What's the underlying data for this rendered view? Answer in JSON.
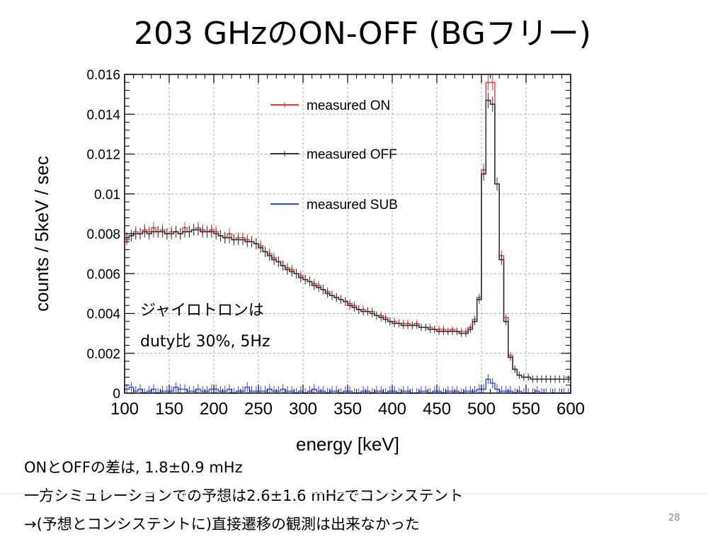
{
  "slide": {
    "title": "203 GHzのON-OFF (BGフリー)",
    "annotation_line1": "ジャイロトロンは",
    "annotation_line2": "duty比 30%, 5Hz",
    "footer": [
      "ONとOFFの差は, 1.8±0.9 mHz",
      "一方シミュレーションでの予想は2.6±1.6 mHzでコンシステント",
      "→(予想とコンシステントに)直接遷移の観測は出来なかった"
    ],
    "page_number": "28"
  },
  "chart_data": {
    "type": "line",
    "xlabel": "energy [keV]",
    "ylabel": "counts / 5keV / sec",
    "xlim": [
      100,
      600
    ],
    "ylim": [
      0,
      0.016
    ],
    "x_ticks": [
      "100",
      "150",
      "200",
      "250",
      "300",
      "350",
      "400",
      "450",
      "500",
      "550",
      "600"
    ],
    "y_ticks": [
      "0",
      "0.002",
      "0.004",
      "0.006",
      "0.008",
      "0.01",
      "0.012",
      "0.014",
      "0.016"
    ],
    "grid": true,
    "legend_placement": "top-right",
    "bin_width_keV": 5,
    "x": [
      100,
      105,
      110,
      115,
      120,
      125,
      130,
      135,
      140,
      145,
      150,
      155,
      160,
      165,
      170,
      175,
      180,
      185,
      190,
      195,
      200,
      205,
      210,
      215,
      220,
      225,
      230,
      235,
      240,
      245,
      250,
      255,
      260,
      265,
      270,
      275,
      280,
      285,
      290,
      295,
      300,
      305,
      310,
      315,
      320,
      325,
      330,
      335,
      340,
      345,
      350,
      355,
      360,
      365,
      370,
      375,
      380,
      385,
      390,
      395,
      400,
      405,
      410,
      415,
      420,
      425,
      430,
      435,
      440,
      445,
      450,
      455,
      460,
      465,
      470,
      475,
      480,
      485,
      490,
      495,
      500,
      505,
      510,
      515,
      520,
      525,
      530,
      535,
      540,
      545,
      550,
      555,
      560,
      565,
      570,
      575,
      580,
      585,
      590,
      595
    ],
    "series": [
      {
        "name": "measured ON",
        "color": "#ff3333",
        "values": [
          0.0077,
          0.0079,
          0.0081,
          0.008,
          0.0082,
          0.0081,
          0.0083,
          0.0081,
          0.0082,
          0.008,
          0.0081,
          0.0081,
          0.008,
          0.0083,
          0.0081,
          0.0082,
          0.0083,
          0.0082,
          0.0081,
          0.0082,
          0.0081,
          0.0079,
          0.0078,
          0.008,
          0.0077,
          0.0078,
          0.0078,
          0.0077,
          0.0076,
          0.0075,
          0.0074,
          0.0071,
          0.007,
          0.0068,
          0.0066,
          0.0064,
          0.0063,
          0.0062,
          0.006,
          0.0059,
          0.0057,
          0.0056,
          0.0055,
          0.0054,
          0.0052,
          0.0051,
          0.0049,
          0.0048,
          0.0047,
          0.0046,
          0.0045,
          0.0044,
          0.0042,
          0.0042,
          0.0041,
          0.0041,
          0.0039,
          0.0039,
          0.0038,
          0.0036,
          0.0036,
          0.0035,
          0.0035,
          0.0035,
          0.0034,
          0.0035,
          0.0033,
          0.0033,
          0.0033,
          0.0032,
          0.0032,
          0.0032,
          0.0031,
          0.0032,
          0.0031,
          0.0031,
          0.0031,
          0.0033,
          0.0037,
          0.0048,
          0.0112,
          0.0156,
          0.0156,
          0.0105,
          0.0069,
          0.0038,
          0.0019,
          0.0012,
          0.0009,
          0.0008,
          0.0008,
          0.0007,
          0.0007,
          0.0007,
          0.0007,
          0.0007,
          0.0007,
          0.0007,
          0.0007,
          0.0007
        ]
      },
      {
        "name": "measured OFF",
        "color": "#333333",
        "values": [
          0.0078,
          0.0079,
          0.008,
          0.008,
          0.0081,
          0.008,
          0.0081,
          0.0081,
          0.0081,
          0.008,
          0.008,
          0.0081,
          0.008,
          0.0081,
          0.0081,
          0.0082,
          0.0082,
          0.0081,
          0.0081,
          0.0081,
          0.008,
          0.0079,
          0.0078,
          0.0078,
          0.0077,
          0.0077,
          0.0077,
          0.0076,
          0.0076,
          0.0075,
          0.0073,
          0.0071,
          0.0069,
          0.0067,
          0.0066,
          0.0064,
          0.0062,
          0.0061,
          0.006,
          0.0058,
          0.0057,
          0.0056,
          0.0054,
          0.0053,
          0.0052,
          0.005,
          0.0049,
          0.0048,
          0.0047,
          0.0046,
          0.0044,
          0.0043,
          0.0042,
          0.0041,
          0.0041,
          0.004,
          0.0039,
          0.0038,
          0.0037,
          0.0036,
          0.0035,
          0.0035,
          0.0034,
          0.0034,
          0.0034,
          0.0034,
          0.0033,
          0.0033,
          0.0032,
          0.0032,
          0.0031,
          0.0031,
          0.0031,
          0.0031,
          0.0031,
          0.003,
          0.003,
          0.0032,
          0.0036,
          0.0047,
          0.011,
          0.0147,
          0.0145,
          0.0105,
          0.0067,
          0.0036,
          0.0018,
          0.0012,
          0.0009,
          0.0008,
          0.0008,
          0.0007,
          0.0007,
          0.0007,
          0.0007,
          0.0007,
          0.0007,
          0.0007,
          0.0007,
          0.0007
        ]
      },
      {
        "name": "measured SUB",
        "color": "#3344ff",
        "values": [
          0.0002,
          0.0003,
          0.0001,
          0.0002,
          0.0,
          0.0001,
          0.0002,
          0.0,
          0.0001,
          0.0001,
          0.0001,
          0.0003,
          0.0002,
          0.0002,
          0.0001,
          0.0001,
          0.0002,
          0.0001,
          0.0001,
          0.0002,
          0.0002,
          0.0001,
          0.0001,
          0.0002,
          0.0,
          0.0001,
          0.0001,
          0.0003,
          0.0001,
          0.0001,
          0.0001,
          0.0001,
          0.0002,
          0.0001,
          0.0001,
          0.0002,
          0.0001,
          0.0001,
          0.0,
          0.0001,
          0.0,
          0.0001,
          0.0002,
          0.0001,
          0.0001,
          0.0,
          0.0001,
          0.0001,
          0.0,
          0.0001,
          0.0001,
          0.0,
          0.0,
          0.0001,
          0.0001,
          0.0,
          0.0001,
          0.0001,
          0.0,
          0.0001,
          0.0001,
          0.0,
          0.0001,
          0.0001,
          0.0,
          0.0,
          0.0001,
          0.0001,
          0.0,
          0.0001,
          0.0001,
          0.0,
          0.0001,
          0.0001,
          0.0001,
          0.0,
          0.0001,
          0.0001,
          0.0001,
          0.0002,
          0.0002,
          0.0007,
          0.0005,
          0.0002,
          0.0001,
          0.0001,
          0.0001,
          0.0,
          0.0001,
          0.0,
          0.0,
          0.0,
          0.0001,
          0.0,
          0.0,
          0.0,
          0.0,
          0.0,
          0.0,
          0.0
        ]
      }
    ]
  }
}
